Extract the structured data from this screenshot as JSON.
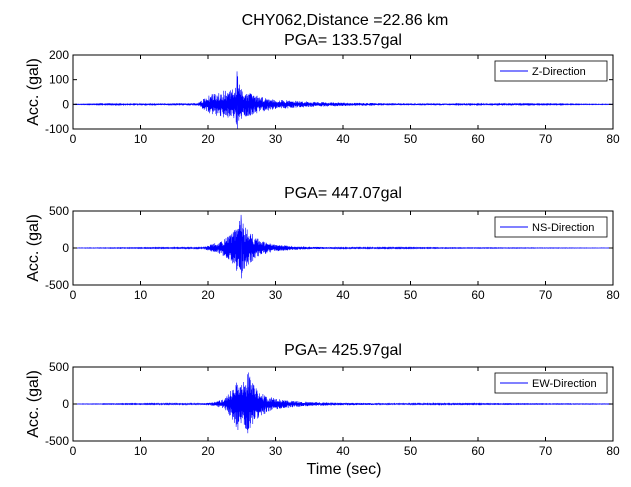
{
  "figure_title": "CHY062,Distance =22.86 km",
  "x_axis_label": "Time (sec)",
  "colors": {
    "trace": "#0000ff",
    "axes": "#000000",
    "background": "#ffffff"
  },
  "chart_data": [
    {
      "type": "line",
      "title": "PGA= 133.57gal",
      "ylabel": "Acc. (gal)",
      "xlabel": "",
      "xlim": [
        0,
        80
      ],
      "ylim": [
        -100,
        200
      ],
      "xticks": [
        0,
        10,
        20,
        30,
        40,
        50,
        60,
        70,
        80
      ],
      "yticks": [
        -100,
        0,
        100,
        200
      ],
      "legend": "top-right",
      "series": [
        {
          "name": "Z-Direction",
          "x": [
            0,
            18.5,
            20,
            21,
            22,
            23,
            24,
            24.3,
            24.6,
            25,
            26,
            27,
            28,
            30,
            33,
            36,
            40,
            45,
            50,
            60,
            70,
            80
          ],
          "envelope": [
            1,
            5,
            35,
            45,
            55,
            55,
            65,
            133.57,
            90,
            60,
            50,
            38,
            30,
            20,
            14,
            10,
            7,
            5,
            4,
            3,
            2,
            1
          ]
        }
      ]
    },
    {
      "type": "line",
      "title": "PGA= 447.07gal",
      "ylabel": "Acc. (gal)",
      "xlabel": "",
      "xlim": [
        0,
        80
      ],
      "ylim": [
        -500,
        500
      ],
      "xticks": [
        0,
        10,
        20,
        30,
        40,
        50,
        60,
        70,
        80
      ],
      "yticks": [
        -500,
        0,
        500
      ],
      "legend": "top-right",
      "series": [
        {
          "name": "NS-Direction",
          "x": [
            0,
            19,
            20,
            22,
            23.5,
            24.5,
            24.9,
            25.3,
            26,
            27,
            28,
            30,
            33,
            36,
            40,
            50,
            60,
            70,
            80
          ],
          "envelope": [
            2,
            8,
            40,
            90,
            200,
            350,
            447.07,
            300,
            250,
            150,
            90,
            45,
            25,
            15,
            10,
            6,
            4,
            3,
            2
          ]
        }
      ]
    },
    {
      "type": "line",
      "title": "PGA= 425.97gal",
      "ylabel": "Acc. (gal)",
      "xlabel": "Time (sec)",
      "xlim": [
        0,
        80
      ],
      "ylim": [
        -500,
        500
      ],
      "xticks": [
        0,
        10,
        20,
        30,
        40,
        50,
        60,
        70,
        80
      ],
      "yticks": [
        -500,
        0,
        500
      ],
      "legend": "top-right",
      "series": [
        {
          "name": "EW-Direction",
          "x": [
            0,
            19,
            21,
            22.5,
            23.5,
            24.5,
            25,
            25.5,
            26,
            27,
            28,
            29,
            31,
            34,
            38,
            45,
            55,
            65,
            80
          ],
          "envelope": [
            2,
            10,
            30,
            70,
            200,
            400,
            300,
            360,
            425.97,
            220,
            160,
            100,
            60,
            35,
            20,
            12,
            8,
            5,
            3
          ]
        }
      ]
    }
  ]
}
